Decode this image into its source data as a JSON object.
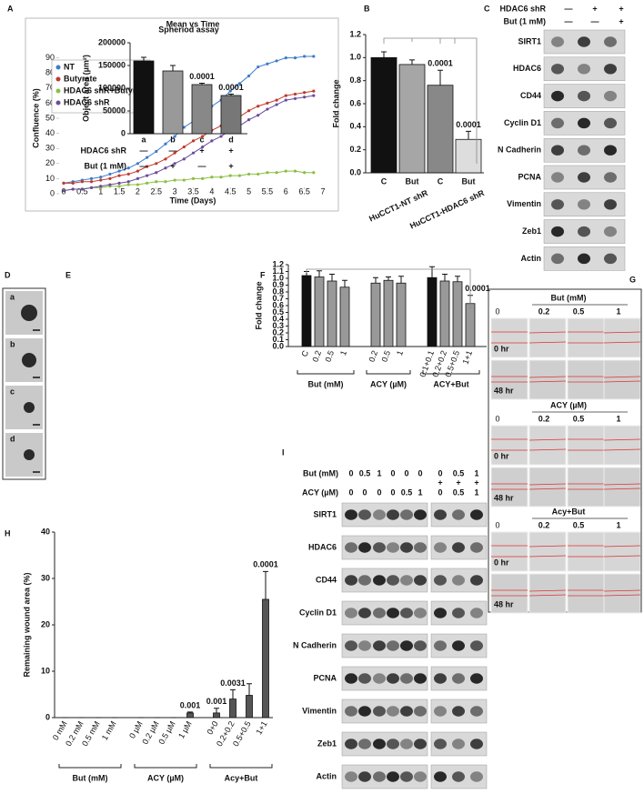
{
  "chart_data": [
    {
      "type": "line",
      "title": "Mean vs Time",
      "xlabel": "Time (Days)",
      "ylabel": "Confluence (%)",
      "legend": "upper left",
      "x": [
        0,
        0.25,
        0.5,
        0.75,
        1,
        1.25,
        1.5,
        1.75,
        2,
        2.25,
        2.5,
        2.75,
        3,
        3.25,
        3.5,
        3.75,
        4,
        4.25,
        4.5,
        4.75,
        5,
        5.25,
        5.5,
        5.75,
        6,
        6.25,
        6.5,
        6.75
      ],
      "xlim": [
        0,
        7
      ],
      "xticks": [
        0,
        0.5,
        1,
        1.5,
        2,
        2.5,
        3,
        3.5,
        4,
        4.5,
        5,
        5.5,
        6,
        6.5,
        7
      ],
      "ylim": [
        0,
        100
      ],
      "yticks": [
        0,
        10,
        20,
        30,
        40,
        50,
        60,
        70,
        80,
        90
      ],
      "series": [
        {
          "name": "NT",
          "color": "#3d7cc9",
          "values": [
            7,
            8,
            9,
            10,
            11,
            13,
            15,
            17,
            20,
            24,
            28,
            33,
            38,
            44,
            48,
            53,
            58,
            62,
            68,
            73,
            78,
            84,
            86,
            88,
            90,
            90,
            91,
            91
          ]
        },
        {
          "name": "Butyrate",
          "color": "#c0392b",
          "values": [
            7,
            7,
            8,
            8,
            9,
            10,
            12,
            13,
            15,
            18,
            20,
            23,
            27,
            31,
            35,
            38,
            42,
            45,
            48,
            51,
            55,
            58,
            60,
            62,
            65,
            66,
            67,
            68
          ]
        },
        {
          "name": "HDAC6 shR+Butyrate",
          "color": "#8bbf3f",
          "values": [
            2,
            3,
            3,
            4,
            4,
            5,
            5,
            6,
            6,
            7,
            8,
            8,
            9,
            9,
            10,
            10,
            11,
            11,
            12,
            12,
            13,
            13,
            14,
            14,
            15,
            15,
            14,
            14
          ]
        },
        {
          "name": "HDAC6 shR",
          "color": "#6a4c9c",
          "values": [
            2,
            3,
            3,
            4,
            5,
            6,
            7,
            8,
            10,
            12,
            14,
            17,
            20,
            23,
            27,
            31,
            35,
            38,
            42,
            45,
            49,
            52,
            56,
            59,
            62,
            63,
            64,
            65
          ]
        }
      ]
    },
    {
      "type": "bar",
      "ylabel": "Fold change",
      "categories": [
        "C",
        "But",
        "C",
        "But"
      ],
      "values": [
        1.0,
        0.94,
        0.76,
        0.29
      ],
      "errors": [
        0.05,
        0.04,
        0.13,
        0.07
      ],
      "colors": [
        "#111111",
        "#a6a6a6",
        "#888888",
        "#dddddd"
      ],
      "annotations": [
        null,
        null,
        "0.0001",
        "0.0001"
      ],
      "groups": [
        "HuCCT1-NT shR",
        "HuCCT1-HDAC6 shR"
      ],
      "ylim": [
        0,
        1.2
      ],
      "yticks": [
        {
          "value": 0,
          "label": "0.0"
        },
        0.2,
        0.4,
        0.6,
        0.8,
        {
          "value": 1,
          "label": "1.0"
        },
        1.2
      ]
    },
    {
      "type": "bar",
      "title": "Spheriod assay",
      "ylabel": "Object area (µm²)",
      "categories": [
        "a",
        "b",
        "c",
        "d"
      ],
      "values": [
        160000,
        138000,
        108000,
        84000
      ],
      "errors": [
        8000,
        12000,
        3000,
        3000
      ],
      "colors": [
        "#111111",
        "#999999",
        "#888888",
        "#777777"
      ],
      "annotations": [
        null,
        null,
        "0.0001",
        "0.0001"
      ],
      "conditions": [
        {
          "label": "HDAC6 shR",
          "marks": [
            "—",
            "—",
            "+",
            "+"
          ]
        },
        {
          "label": "But (1 mM)",
          "marks": [
            "—",
            "+",
            "—",
            "+"
          ]
        }
      ],
      "ylim": [
        0,
        200000
      ],
      "yticks": [
        0,
        50000,
        100000,
        150000,
        200000
      ]
    },
    {
      "type": "bar",
      "ylabel": "Fold change",
      "categories": [
        "C",
        "0.2",
        "0.5",
        "1",
        "0.2",
        "0.5",
        "1",
        "0.1+0.1",
        "0.2+0.2",
        "0.5+0.5",
        "1+1"
      ],
      "values": [
        1.04,
        1.02,
        0.96,
        0.87,
        0.93,
        0.97,
        0.93,
        1.01,
        0.96,
        0.95,
        0.63
      ],
      "errors": [
        0.06,
        0.09,
        0.1,
        0.1,
        0.08,
        0.05,
        0.1,
        0.16,
        0.1,
        0.08,
        0.12
      ],
      "colors": [
        "#111111",
        "#999999",
        "#999999",
        "#999999",
        "#999999",
        "#999999",
        "#999999",
        "#111111",
        "#999999",
        "#999999",
        "#999999"
      ],
      "annotations": [
        null,
        null,
        null,
        null,
        null,
        null,
        null,
        null,
        null,
        null,
        "0.0001"
      ],
      "groups": [
        "But (mM)",
        "ACY (µM)",
        "ACY+But"
      ],
      "ylim": [
        0,
        1.2
      ],
      "yticks": [
        {
          "value": 0,
          "label": "0.0"
        },
        0.1,
        0.2,
        0.3,
        0.4,
        0.5,
        0.6,
        0.7,
        0.8,
        0.9,
        {
          "value": 1,
          "label": "1.0"
        },
        1.1,
        1.2
      ]
    },
    {
      "type": "bar",
      "ylabel": "Remaining wound area (%)",
      "categories": [
        "0 mM",
        "0.2 mM",
        "0.5 mM",
        "1 mM",
        "0 µM",
        "0.2 µM",
        "0.5 µM",
        "1 µM",
        "0+0",
        "0.2+0.2",
        "0.5+0.5",
        "1+1"
      ],
      "values": [
        0,
        0,
        0,
        0,
        0,
        0,
        0,
        1,
        1,
        4,
        4.8,
        25.5
      ],
      "errors": [
        0,
        0,
        0,
        0,
        0,
        0,
        0,
        0.2,
        1,
        2,
        2.5,
        6
      ],
      "colors": [
        "#555555",
        "#555555",
        "#555555",
        "#555555",
        "#555555",
        "#555555",
        "#555555",
        "#555555",
        "#555555",
        "#555555",
        "#555555",
        "#555555"
      ],
      "annotations": [
        null,
        null,
        null,
        null,
        null,
        null,
        null,
        "0.001",
        "0.001",
        "0.0031",
        null,
        "0.0001"
      ],
      "groups": [
        "But (mM)",
        "ACY (µM)",
        "Acy+But"
      ],
      "ylim": [
        0,
        40
      ],
      "yticks": [
        0,
        10,
        20,
        30,
        40
      ]
    }
  ],
  "panel_letters": [
    "A",
    "B",
    "C",
    "D",
    "E",
    "F",
    "G",
    "H",
    "I"
  ],
  "blot_c": {
    "header": [
      {
        "label": "HDAC6 shR",
        "marks": [
          "—",
          "+",
          "+"
        ]
      },
      {
        "label": "But (1 mM)",
        "marks": [
          "—",
          "—",
          "+"
        ]
      }
    ],
    "proteins": [
      "SIRT1",
      "HDAC6",
      "CD44",
      "Cyclin D1",
      "N Cadherin",
      "PCNA",
      "Vimentin",
      "Zeb1",
      "Actin"
    ]
  },
  "blot_i": {
    "header": [
      {
        "label": "But (mM)",
        "marks": [
          "0",
          "0.5",
          "1",
          "0",
          "0",
          "0",
          "0",
          "0.5",
          "1"
        ]
      },
      {
        "label": "ACY (µM)",
        "marks": [
          "0",
          "0",
          "0",
          "0",
          "0.5",
          "1",
          "0",
          "0.5",
          "1"
        ]
      }
    ],
    "plus": [
      "+",
      "+",
      "+"
    ],
    "proteins": [
      "SIRT1",
      "HDAC6",
      "CD44",
      "Cyclin D1",
      "N Cadherin",
      "PCNA",
      "Vimentin",
      "Zeb1",
      "Actin"
    ]
  },
  "sphere_images": [
    "a",
    "b",
    "c",
    "d"
  ],
  "scratch": {
    "sections": [
      {
        "title": "But (mM)",
        "doses": [
          "0",
          "0.2",
          "0.5",
          "1"
        ]
      },
      {
        "title": "ACY (µM)",
        "doses": [
          "0",
          "0.2",
          "0.5",
          "1"
        ]
      },
      {
        "title": "Acy+But",
        "doses": [
          "0",
          "0.2",
          "0.5",
          "1"
        ]
      }
    ],
    "times": [
      "0 hr",
      "48 hr"
    ]
  }
}
